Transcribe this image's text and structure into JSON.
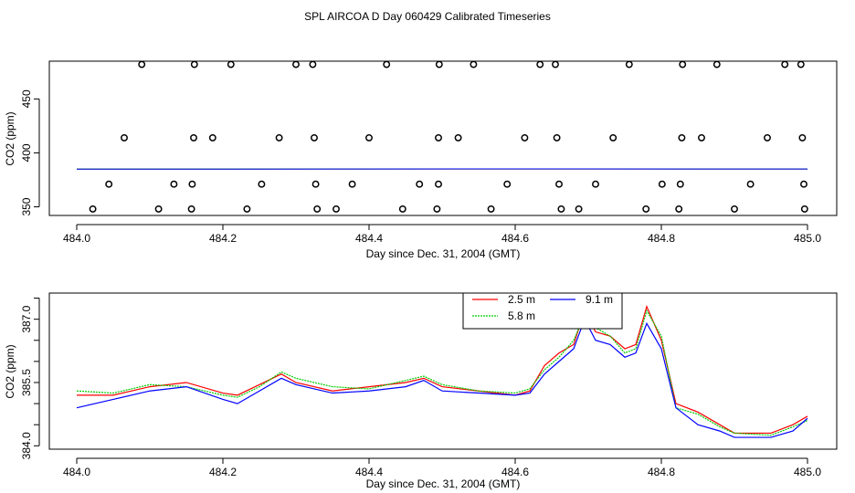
{
  "title": "SPL AIRCOA D  Day 060429  Calibrated Timeseries",
  "chart_data": [
    {
      "type": "scatter",
      "title": "",
      "xlabel": "Day since Dec. 31, 2004 (GMT)",
      "ylabel": "CO2 (ppm)",
      "xlim": [
        484.0,
        485.0
      ],
      "ylim": [
        342,
        485
      ],
      "x_ticks": [
        484.0,
        484.2,
        484.4,
        484.6,
        484.8,
        485.0
      ],
      "x_tick_labels": [
        "484.0",
        "484.2",
        "484.4",
        "484.6",
        "484.8",
        "485.0"
      ],
      "y_ticks": [
        350,
        400,
        450
      ],
      "y_tick_labels": [
        "350",
        "400",
        "450"
      ],
      "points": {
        "level_482": [
          484.089,
          484.161,
          484.211,
          484.3,
          484.323,
          484.424,
          484.496,
          484.543,
          484.634,
          484.655,
          484.756,
          484.829,
          484.876,
          484.969,
          484.991
        ],
        "level_414": [
          484.065,
          484.16,
          484.186,
          484.277,
          484.325,
          484.4,
          484.495,
          484.522,
          484.613,
          484.657,
          484.734,
          484.828,
          484.855,
          484.945,
          484.993
        ],
        "level_371": [
          484.044,
          484.133,
          484.158,
          484.253,
          484.327,
          484.377,
          484.469,
          484.495,
          484.589,
          484.66,
          484.71,
          484.801,
          484.826,
          484.922,
          484.995
        ],
        "level_348": [
          484.022,
          484.112,
          484.157,
          484.233,
          484.329,
          484.355,
          484.446,
          484.493,
          484.567,
          484.663,
          484.687,
          484.779,
          484.824,
          484.9,
          484.996
        ]
      },
      "series": [
        {
          "name": "2.5 m",
          "color": "#ff0000",
          "values": [
            385.0,
            385.0,
            385.1,
            385.0
          ]
        },
        {
          "name": "5.8 m",
          "color": "#00cc00",
          "values": [
            385.0,
            385.1,
            385.0,
            385.1
          ]
        },
        {
          "name": "9.1 m",
          "color": "#0000ff",
          "values": [
            384.9,
            385.0,
            385.2,
            385.0
          ]
        }
      ],
      "series_x": [
        484.0,
        484.35,
        484.68,
        485.0
      ]
    },
    {
      "type": "line",
      "title": "",
      "xlabel": "Day since Dec. 31, 2004 (GMT)",
      "ylabel": "CO2 (ppm)",
      "xlim": [
        484.0,
        485.0
      ],
      "ylim": [
        383.92,
        387.62
      ],
      "x_ticks": [
        484.0,
        484.2,
        484.4,
        484.6,
        484.8,
        485.0
      ],
      "x_tick_labels": [
        "484.0",
        "484.2",
        "484.4",
        "484.6",
        "484.8",
        "485.0"
      ],
      "y_ticks": [
        384.0,
        384.5,
        385.0,
        385.5,
        386.0,
        386.5,
        387.0,
        387.5
      ],
      "y_tick_labels": [
        "384.0",
        "",
        "",
        "385.5",
        "",
        "",
        "387.0",
        ""
      ],
      "legend": {
        "position": "top-center",
        "entries": [
          "2.5 m",
          "9.1 m",
          "5.8 m"
        ]
      },
      "x": [
        484.0,
        484.05,
        484.1,
        484.15,
        484.2,
        484.22,
        484.25,
        484.28,
        484.3,
        484.35,
        484.4,
        484.45,
        484.475,
        484.5,
        484.55,
        484.6,
        484.62,
        484.64,
        484.66,
        484.68,
        484.695,
        484.71,
        484.73,
        484.75,
        484.765,
        484.78,
        484.8,
        484.82,
        484.85,
        484.88,
        484.9,
        484.95,
        484.98,
        485.0
      ],
      "series": [
        {
          "name": "2.5 m",
          "color": "#ff0000",
          "values": [
            385.2,
            385.2,
            385.4,
            385.5,
            385.25,
            385.2,
            385.45,
            385.7,
            385.5,
            385.3,
            385.4,
            385.5,
            385.6,
            385.4,
            385.3,
            385.2,
            385.3,
            385.9,
            386.2,
            386.4,
            387.2,
            386.7,
            386.6,
            386.3,
            386.4,
            387.3,
            386.5,
            385.0,
            384.8,
            384.5,
            384.3,
            384.3,
            384.5,
            384.7
          ]
        },
        {
          "name": "5.8 m",
          "color": "#00cc00",
          "values": [
            385.3,
            385.25,
            385.45,
            385.4,
            385.2,
            385.15,
            385.4,
            385.75,
            385.6,
            385.4,
            385.35,
            385.55,
            385.65,
            385.45,
            385.3,
            385.25,
            385.35,
            385.8,
            386.1,
            386.5,
            387.1,
            386.8,
            386.6,
            386.2,
            386.3,
            387.2,
            386.6,
            384.9,
            384.75,
            384.45,
            384.3,
            384.25,
            384.45,
            384.6
          ]
        },
        {
          "name": "9.1 m",
          "color": "#0000ff",
          "values": [
            384.9,
            385.1,
            385.3,
            385.4,
            385.1,
            385.0,
            385.3,
            385.6,
            385.45,
            385.25,
            385.3,
            385.4,
            385.55,
            385.3,
            385.25,
            385.2,
            385.25,
            385.7,
            386.0,
            386.3,
            387.0,
            386.5,
            386.4,
            386.1,
            386.2,
            386.9,
            386.3,
            384.9,
            384.5,
            384.35,
            384.2,
            384.2,
            384.35,
            384.65
          ]
        }
      ]
    }
  ]
}
